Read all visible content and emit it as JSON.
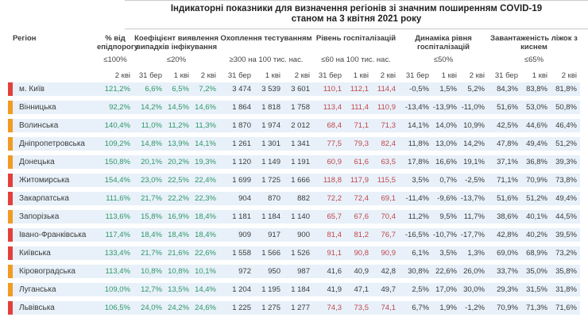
{
  "title": {
    "line1": "Індикаторні показники для визначення регіонів зі значним поширенням COVID-19",
    "line2": "станом на 3 квітня 2021 року"
  },
  "colors": {
    "marker_red": "#e2403b",
    "marker_orange": "#f29a21",
    "value_green": "#2e9668",
    "value_red": "#c2464e",
    "value_dark": "#3a3a3a",
    "row_bg": "#e8f1f9"
  },
  "table": {
    "region_header": "Регіон",
    "groups": [
      {
        "name": "% від епідпорогу",
        "threshold": "≤100%",
        "dates": [
          "2 кві"
        ]
      },
      {
        "name": "Коефіцієнт виявлення випадків інфікування",
        "threshold": "≤20%",
        "dates": [
          "31 бер",
          "1 кві",
          "2 кві"
        ]
      },
      {
        "name": "Охоплення тестуванням",
        "threshold": "≥300 на 100 тис. нас.",
        "dates": [
          "31 бер",
          "1 кві",
          "2 кві"
        ]
      },
      {
        "name": "Рівень госпіталізацій",
        "threshold": "≤60 на 100 тис. нас.",
        "dates": [
          "31 бер",
          "1 кві",
          "2 кві"
        ]
      },
      {
        "name": "Динаміка рівня госпіталізацій",
        "threshold": "≤50%",
        "dates": [
          "31 бер",
          "1 кві",
          "2 кві"
        ]
      },
      {
        "name": "Завантаженість ліжок з киснем",
        "threshold": "≤65%",
        "dates": [
          "31 бер",
          "1 кві",
          "2 кві"
        ]
      }
    ],
    "rows": [
      {
        "region": "м. Київ",
        "marker": "red",
        "epid": "121,2%",
        "coef": [
          "6,6%",
          "6,5%",
          "7,2%"
        ],
        "test": [
          "3 474",
          "3 539",
          "3 601"
        ],
        "hosp": [
          "110,1",
          "112,1",
          "114,4"
        ],
        "hosp_color": "red",
        "dyn": [
          "-0,5%",
          "1,5%",
          "5,2%"
        ],
        "occ": [
          "84,3%",
          "83,8%",
          "81,8%"
        ]
      },
      {
        "region": "Вінницька",
        "marker": "orange",
        "epid": "92,2%",
        "coef": [
          "14,2%",
          "14,5%",
          "14,6%"
        ],
        "test": [
          "1 864",
          "1 818",
          "1 758"
        ],
        "hosp": [
          "113,4",
          "111,4",
          "110,9"
        ],
        "hosp_color": "red",
        "dyn": [
          "-13,4%",
          "-13,9%",
          "-11,0%"
        ],
        "occ": [
          "51,6%",
          "53,0%",
          "50,8%"
        ]
      },
      {
        "region": "Волинська",
        "marker": "orange",
        "epid": "140,4%",
        "coef": [
          "11,0%",
          "11,2%",
          "11,3%"
        ],
        "test": [
          "1 870",
          "1 974",
          "2 012"
        ],
        "hosp": [
          "68,4",
          "71,1",
          "71,3"
        ],
        "hosp_color": "red",
        "dyn": [
          "14,1%",
          "14,0%",
          "10,9%"
        ],
        "occ": [
          "42,5%",
          "44,6%",
          "46,4%"
        ]
      },
      {
        "region": "Дніпропетровська",
        "marker": "orange",
        "epid": "109,2%",
        "coef": [
          "14,8%",
          "13,9%",
          "14,1%"
        ],
        "test": [
          "1 261",
          "1 301",
          "1 341"
        ],
        "hosp": [
          "77,5",
          "79,3",
          "82,4"
        ],
        "hosp_color": "red",
        "dyn": [
          "11,8%",
          "13,0%",
          "14,2%"
        ],
        "occ": [
          "47,8%",
          "49,4%",
          "51,2%"
        ]
      },
      {
        "region": "Донецька",
        "marker": "orange",
        "epid": "150,8%",
        "coef": [
          "20,1%",
          "20,2%",
          "19,3%"
        ],
        "test": [
          "1 120",
          "1 149",
          "1 191"
        ],
        "hosp": [
          "60,9",
          "61,6",
          "63,5"
        ],
        "hosp_color": "red",
        "dyn": [
          "17,8%",
          "16,6%",
          "19,1%"
        ],
        "occ": [
          "37,1%",
          "36,8%",
          "39,3%"
        ]
      },
      {
        "region": "Житомирська",
        "marker": "red",
        "epid": "154,4%",
        "coef": [
          "23,0%",
          "22,5%",
          "22,4%"
        ],
        "test": [
          "1 699",
          "1 725",
          "1 666"
        ],
        "hosp": [
          "118,8",
          "117,9",
          "115,5"
        ],
        "hosp_color": "red",
        "dyn": [
          "3,5%",
          "0,7%",
          "-2,5%"
        ],
        "occ": [
          "71,1%",
          "70,9%",
          "73,8%"
        ]
      },
      {
        "region": "Закарпатська",
        "marker": "red",
        "epid": "111,6%",
        "coef": [
          "21,7%",
          "22,2%",
          "22,3%"
        ],
        "test": [
          "904",
          "870",
          "882"
        ],
        "hosp": [
          "72,2",
          "72,4",
          "69,1"
        ],
        "hosp_color": "red",
        "dyn": [
          "-11,4%",
          "-9,6%",
          "-13,7%"
        ],
        "occ": [
          "51,6%",
          "51,2%",
          "49,4%"
        ]
      },
      {
        "region": "Запорізька",
        "marker": "orange",
        "epid": "113,6%",
        "coef": [
          "15,8%",
          "16,9%",
          "18,4%"
        ],
        "test": [
          "1 181",
          "1 184",
          "1 140"
        ],
        "hosp": [
          "65,7",
          "67,6",
          "70,4"
        ],
        "hosp_color": "red",
        "dyn": [
          "11,2%",
          "9,5%",
          "11,7%"
        ],
        "occ": [
          "38,6%",
          "40,1%",
          "44,5%"
        ]
      },
      {
        "region": "Івано-Франківська",
        "marker": "red",
        "epid": "117,4%",
        "coef": [
          "18,4%",
          "18,4%",
          "18,4%"
        ],
        "test": [
          "909",
          "917",
          "900"
        ],
        "hosp": [
          "81,4",
          "81,2",
          "76,7"
        ],
        "hosp_color": "red",
        "dyn": [
          "-16,5%",
          "-10,7%",
          "-17,7%"
        ],
        "occ": [
          "42,8%",
          "40,2%",
          "39,5%"
        ]
      },
      {
        "region": "Київська",
        "marker": "red",
        "epid": "133,4%",
        "coef": [
          "21,7%",
          "21,6%",
          "22,6%"
        ],
        "test": [
          "1 558",
          "1 566",
          "1 526"
        ],
        "hosp": [
          "91,1",
          "90,8",
          "90,9"
        ],
        "hosp_color": "red",
        "dyn": [
          "6,1%",
          "3,5%",
          "1,3%"
        ],
        "occ": [
          "69,0%",
          "68,9%",
          "73,2%"
        ]
      },
      {
        "region": "Кіровоградська",
        "marker": "orange",
        "epid": "113,4%",
        "coef": [
          "10,8%",
          "10,8%",
          "10,1%"
        ],
        "test": [
          "972",
          "950",
          "987"
        ],
        "hosp": [
          "41,6",
          "40,9",
          "42,8"
        ],
        "hosp_color": "dark",
        "dyn": [
          "30,8%",
          "22,6%",
          "26,0%"
        ],
        "occ": [
          "33,7%",
          "35,0%",
          "35,8%"
        ]
      },
      {
        "region": "Луганська",
        "marker": "orange",
        "epid": "109,0%",
        "coef": [
          "12,7%",
          "13,5%",
          "14,4%"
        ],
        "test": [
          "1 204",
          "1 195",
          "1 184"
        ],
        "hosp": [
          "41,9",
          "47,1",
          "49,7"
        ],
        "hosp_color": "dark",
        "dyn": [
          "2,5%",
          "17,0%",
          "30,0%"
        ],
        "occ": [
          "29,3%",
          "31,5%",
          "31,8%"
        ]
      },
      {
        "region": "Львівська",
        "marker": "red",
        "epid": "106,5%",
        "coef": [
          "24,0%",
          "24,2%",
          "24,6%"
        ],
        "test": [
          "1 225",
          "1 275",
          "1 277"
        ],
        "hosp": [
          "74,3",
          "73,5",
          "74,1"
        ],
        "hosp_color": "red",
        "dyn": [
          "6,7%",
          "1,9%",
          "-1,2%"
        ],
        "occ": [
          "70,9%",
          "71,3%",
          "71,6%"
        ]
      }
    ]
  }
}
